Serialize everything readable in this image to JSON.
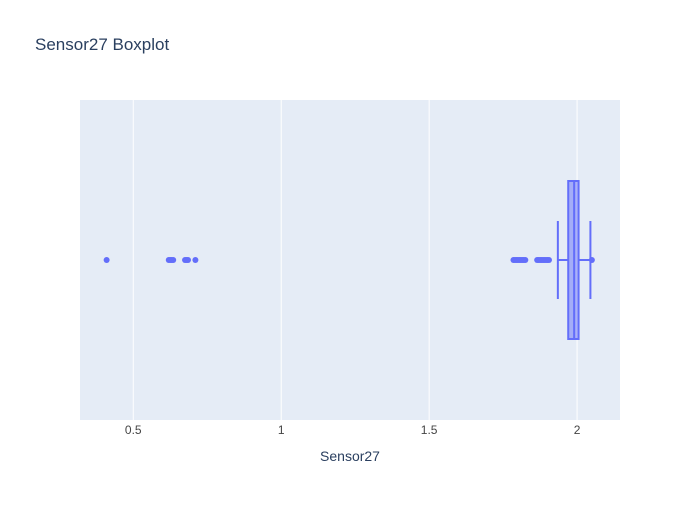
{
  "chart_data": {
    "type": "box",
    "title": "Sensor27 Boxplot",
    "xlabel": "Sensor27",
    "ylabel": "",
    "orientation": "horizontal",
    "xlim": [
      0.32,
      2.145
    ],
    "xticks": [
      0.5,
      1,
      1.5,
      2
    ],
    "xtick_labels": [
      "0.5",
      "1",
      "1.5",
      "2"
    ],
    "grid": true,
    "colors": {
      "plot_bg": "#e5ecf6",
      "grid": "#ffffff",
      "box": "#636efa",
      "box_fill": "rgba(99,110,250,0.5)",
      "text": "#2a3f5f",
      "tick_text": "#444444"
    },
    "box": {
      "lower_fence": 1.935,
      "q1": 1.97,
      "median": 1.99,
      "q3": 2.005,
      "upper_fence": 2.045
    },
    "outliers": [
      0.41,
      0.62,
      0.625,
      0.63,
      0.635,
      0.675,
      0.68,
      0.685,
      0.71,
      1.785,
      1.79,
      1.795,
      1.8,
      1.805,
      1.81,
      1.815,
      1.82,
      1.825,
      1.865,
      1.87,
      1.875,
      1.88,
      1.885,
      1.89,
      1.895,
      1.9,
      1.905,
      2.05
    ]
  }
}
